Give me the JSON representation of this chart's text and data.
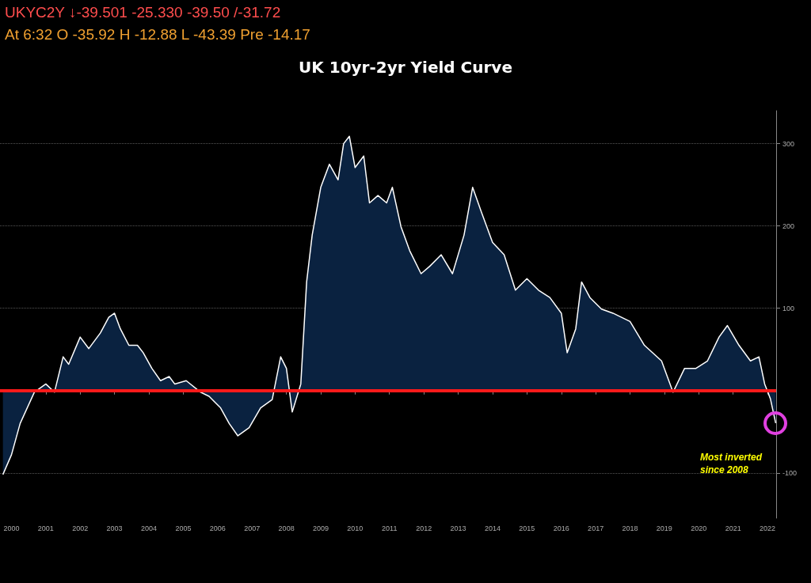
{
  "chart_data": {
    "type": "area",
    "title": "UK 10yr-2yr Yield Curve",
    "annotations": [
      "UKYC2Y ↓-39.501 -25.330 -39.50 /-31.72",
      "At 6:32 O -35.92 H -12.88 L -43.39 Pre -14.17",
      "Most inverted since 2008"
    ],
    "x": [
      "2000-04",
      "2000-07",
      "2000-10",
      "2001-03",
      "2001-07",
      "2001-10",
      "2002-01",
      "2002-03",
      "2002-07",
      "2002-10",
      "2003-02",
      "2003-05",
      "2003-07",
      "2003-09",
      "2003-12",
      "2004-03",
      "2004-05",
      "2004-08",
      "2004-11",
      "2005-02",
      "2005-04",
      "2005-08",
      "2006-01",
      "2006-04",
      "2006-08",
      "2006-11",
      "2007-02",
      "2007-06",
      "2007-10",
      "2008-02",
      "2008-05",
      "2008-07",
      "2008-09",
      "2008-12",
      "2009-02",
      "2009-04",
      "2009-07",
      "2009-10",
      "2010-01",
      "2010-03",
      "2010-05",
      "2010-07",
      "2010-10",
      "2010-12",
      "2011-03",
      "2011-06",
      "2011-08",
      "2011-11",
      "2012-02",
      "2012-06",
      "2012-09",
      "2013-01",
      "2013-05",
      "2013-09",
      "2013-12",
      "2014-03",
      "2014-07",
      "2014-11",
      "2015-03",
      "2015-07",
      "2015-11",
      "2016-03",
      "2016-07",
      "2016-09",
      "2016-12",
      "2017-02",
      "2017-05",
      "2017-09",
      "2018-01",
      "2018-07",
      "2018-12",
      "2019-06",
      "2019-10",
      "2020-02",
      "2020-06",
      "2020-10",
      "2021-02",
      "2021-05",
      "2021-09",
      "2022-01",
      "2022-04",
      "2022-06",
      "2022-08",
      "2022-09-26"
    ],
    "series": [
      {
        "color": "#ffffff",
        "values": [
          -102,
          -78,
          -40,
          -2,
          8,
          -2,
          41,
          32,
          65,
          51,
          70,
          89,
          94,
          75,
          55,
          55,
          46,
          27,
          12,
          17,
          8,
          12,
          -2,
          -7,
          -21,
          -40,
          -55,
          -45,
          -21,
          -11,
          41,
          27,
          -26,
          8,
          132,
          189,
          247,
          275,
          256,
          300,
          309,
          271,
          285,
          228,
          237,
          228,
          247,
          199,
          170,
          142,
          151,
          165,
          142,
          189,
          247,
          218,
          180,
          165,
          122,
          136,
          122,
          113,
          94,
          46,
          75,
          132,
          113,
          99,
          94,
          84,
          55,
          36,
          -2,
          27,
          27,
          36,
          65,
          79,
          55,
          36,
          41,
          8,
          -10,
          -39.5
        ]
      }
    ],
    "xlim": [
      "2000-03",
      "2022-10"
    ],
    "xticks": [
      {
        "value": "2000-07",
        "label": "2000"
      },
      {
        "value": "2001-07",
        "label": "2001"
      },
      {
        "value": "2002-07",
        "label": "2002"
      },
      {
        "value": "2003-07",
        "label": "2003"
      },
      {
        "value": "2004-07",
        "label": "2004"
      },
      {
        "value": "2005-07",
        "label": "2005"
      },
      {
        "value": "2006-07",
        "label": "2006"
      },
      {
        "value": "2007-07",
        "label": "2007"
      },
      {
        "value": "2008-07",
        "label": "2008"
      },
      {
        "value": "2009-07",
        "label": "2009"
      },
      {
        "value": "2010-07",
        "label": "2010"
      },
      {
        "value": "2011-07",
        "label": "2011"
      },
      {
        "value": "2012-07",
        "label": "2012"
      },
      {
        "value": "2013-07",
        "label": "2013"
      },
      {
        "value": "2014-07",
        "label": "2014"
      },
      {
        "value": "2015-07",
        "label": "2015"
      },
      {
        "value": "2016-07",
        "label": "2016"
      },
      {
        "value": "2017-07",
        "label": "2017"
      },
      {
        "value": "2018-07",
        "label": "2018"
      },
      {
        "value": "2019-07",
        "label": "2019"
      },
      {
        "value": "2020-07",
        "label": "2020"
      },
      {
        "value": "2021-07",
        "label": "2021"
      },
      {
        "value": "2022-07",
        "label": "2022"
      }
    ],
    "ylim": [
      -155,
      340
    ],
    "yticks": [
      -100,
      100,
      200,
      300
    ],
    "grid": "y",
    "ref_lines": [
      {
        "axis": "y",
        "value": 0,
        "label": null,
        "color": "#ff1a1a"
      }
    ]
  }
}
